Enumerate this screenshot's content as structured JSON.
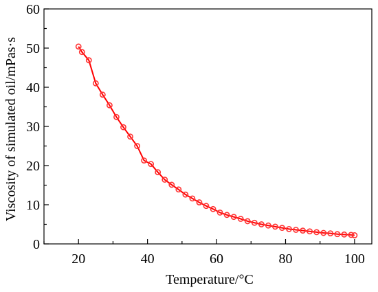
{
  "colors": {
    "series": "#ff0000",
    "marker_fill": "#ff3333",
    "axis": "#000000",
    "background": "#ffffff"
  },
  "chart_data": {
    "type": "line",
    "title": "",
    "xlabel": "Temperature/°C",
    "ylabel": "Viscosity of simulated oil/mPas·s",
    "xlim": [
      10,
      105
    ],
    "ylim": [
      0,
      60
    ],
    "xticks": [
      20,
      40,
      60,
      80,
      100
    ],
    "yticks": [
      0,
      10,
      20,
      30,
      40,
      50,
      60
    ],
    "grid": false,
    "legend": "none",
    "marker": "open circle",
    "series": [
      {
        "x": [
          20,
          21,
          23,
          25,
          27,
          29,
          31,
          33,
          35,
          37,
          39,
          41,
          43,
          45,
          47,
          49,
          51,
          53,
          55,
          57,
          59,
          61,
          63,
          65,
          67,
          69,
          71,
          73,
          75,
          77,
          79,
          81,
          83,
          85,
          87,
          89,
          91,
          93,
          95,
          97,
          99,
          100
        ],
        "values": [
          50.4,
          49.0,
          46.9,
          41.0,
          38.1,
          35.4,
          32.4,
          29.8,
          27.4,
          25.0,
          21.3,
          20.4,
          18.3,
          16.4,
          15.1,
          13.9,
          12.6,
          11.6,
          10.6,
          9.7,
          8.9,
          8.0,
          7.4,
          6.9,
          6.4,
          5.8,
          5.4,
          5.0,
          4.7,
          4.4,
          4.1,
          3.8,
          3.6,
          3.4,
          3.2,
          3.0,
          2.8,
          2.7,
          2.5,
          2.4,
          2.3,
          2.2
        ]
      }
    ]
  }
}
